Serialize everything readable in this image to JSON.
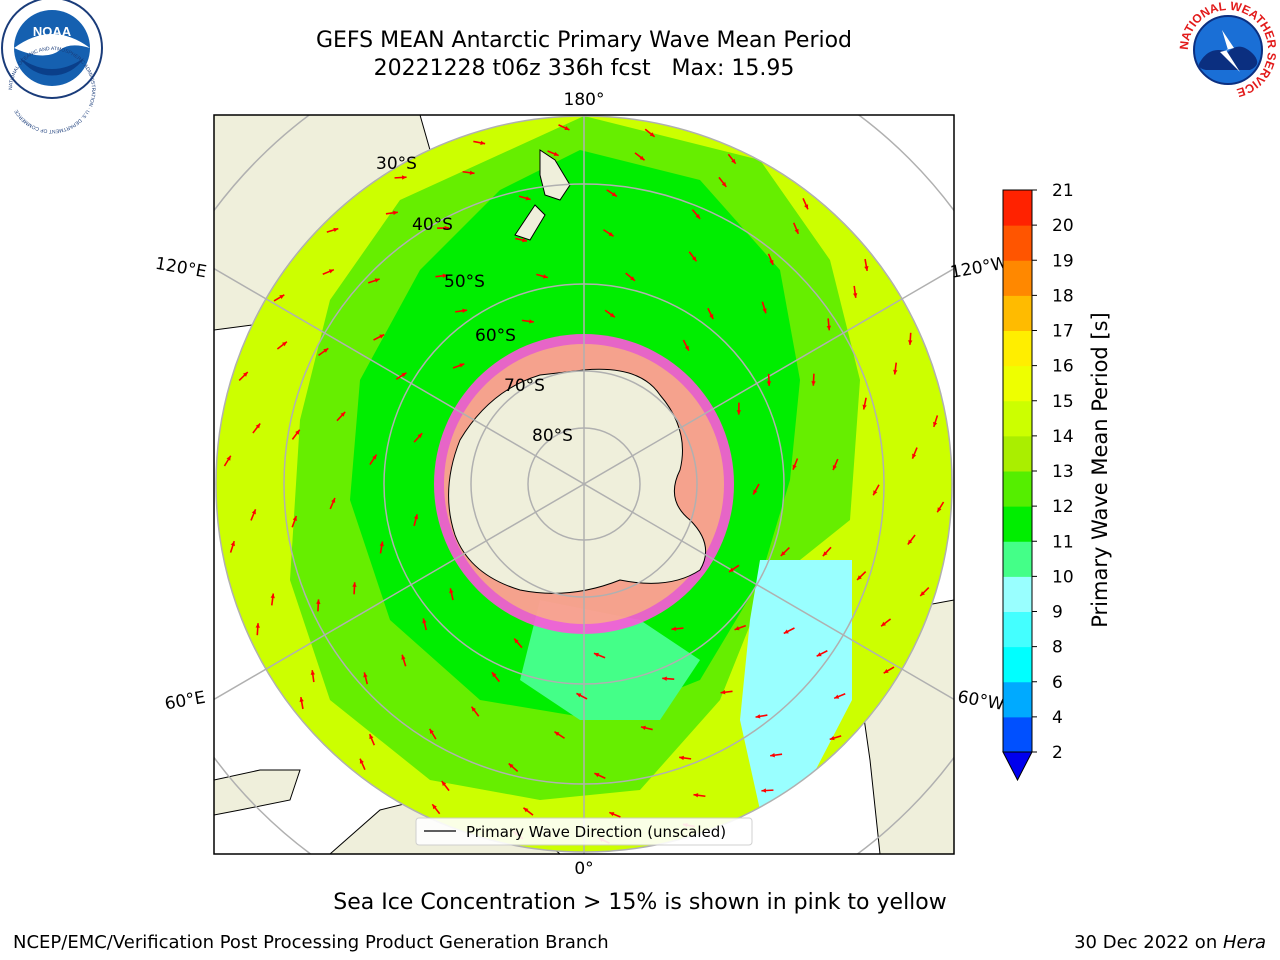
{
  "header": {
    "title_line1": "GEFS MEAN Antarctic Primary Wave Mean Period",
    "title_line2": "20221228 t06z 336h fcst   Max: 15.95"
  },
  "logos": {
    "left": "NOAA",
    "left_ring": "NATIONAL OCEANIC AND ATMOSPHERIC ADMINISTRATION · U.S. DEPARTMENT OF COMMERCE",
    "right_ring": "NATIONAL WEATHER SERVICE"
  },
  "map": {
    "projection": "South Polar Stereographic",
    "lat_labels": [
      "30°S",
      "40°S",
      "50°S",
      "60°S",
      "70°S",
      "80°S"
    ],
    "lon_labels": {
      "top": "180°",
      "bottom": "0°",
      "upper_left": "120°E",
      "lower_left": "60°E",
      "upper_right": "120°W",
      "lower_right": "60°W"
    },
    "legend_label": "Primary Wave Direction (unscaled)",
    "arrow_color": "#ff0000"
  },
  "colorbar": {
    "label": "Primary Wave Mean Period [s]",
    "ticks": [
      "2",
      "4",
      "6",
      "8",
      "9",
      "10",
      "11",
      "12",
      "13",
      "14",
      "15",
      "16",
      "17",
      "18",
      "19",
      "20",
      "21"
    ],
    "colors": [
      "#0050ff",
      "#00aaff",
      "#00ffff",
      "#44ffff",
      "#99ffff",
      "#44ff88",
      "#00ee00",
      "#55ee00",
      "#aaee00",
      "#ccff00",
      "#eeff00",
      "#ffee00",
      "#ffbb00",
      "#ff8800",
      "#ff5500",
      "#ff2200"
    ],
    "extend_color": "#0000ee"
  },
  "caption": "Sea Ice Concentration > 15% is shown in pink to yellow",
  "footer": {
    "left": "NCEP/EMC/Verification Post Processing Product Generation Branch",
    "date": "30 Dec 2022 on ",
    "machine": "Hera"
  }
}
